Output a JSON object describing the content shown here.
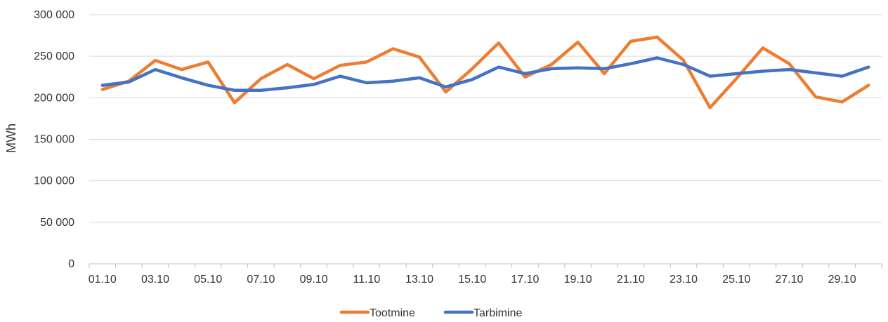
{
  "chart_data": {
    "type": "line",
    "ylabel": "MWh",
    "ylim": [
      0,
      300000
    ],
    "yticks": [
      0,
      50000,
      100000,
      150000,
      200000,
      250000,
      300000
    ],
    "ytick_labels": [
      "0",
      "50 000",
      "100 000",
      "150 000",
      "200 000",
      "250 000",
      "300 000"
    ],
    "x": [
      "01.10",
      "02.10",
      "03.10",
      "04.10",
      "05.10",
      "06.10",
      "07.10",
      "08.10",
      "09.10",
      "10.10",
      "11.10",
      "12.10",
      "13.10",
      "14.10",
      "15.10",
      "16.10",
      "17.10",
      "18.10",
      "19.10",
      "20.10",
      "21.10",
      "22.10",
      "23.10",
      "24.10",
      "25.10",
      "26.10",
      "27.10",
      "28.10",
      "29.10",
      "30.10"
    ],
    "xtick_labels": [
      "01.10",
      "03.10",
      "05.10",
      "07.10",
      "09.10",
      "11.10",
      "13.10",
      "15.10",
      "17.10",
      "19.10",
      "21.10",
      "23.10",
      "25.10",
      "27.10",
      "29.10"
    ],
    "grid": true,
    "legend_position": "bottom",
    "series": [
      {
        "name": "Tootmine",
        "color": "#ED7D31",
        "values": [
          210000,
          220000,
          245000,
          234000,
          243000,
          194000,
          223000,
          240000,
          223000,
          239000,
          243000,
          259000,
          249000,
          207000,
          235000,
          266000,
          225000,
          240000,
          267000,
          229000,
          268000,
          273000,
          245000,
          188000,
          223000,
          260000,
          241000,
          201000,
          195000,
          215000
        ]
      },
      {
        "name": "Tarbimine",
        "color": "#4472C4",
        "values": [
          215000,
          219000,
          234000,
          224000,
          215000,
          209000,
          209000,
          212000,
          216000,
          226000,
          218000,
          220000,
          224000,
          213000,
          222000,
          237000,
          229000,
          235000,
          236000,
          235000,
          241000,
          248000,
          240000,
          226000,
          229000,
          232000,
          234000,
          230000,
          226000,
          237000
        ]
      }
    ]
  }
}
